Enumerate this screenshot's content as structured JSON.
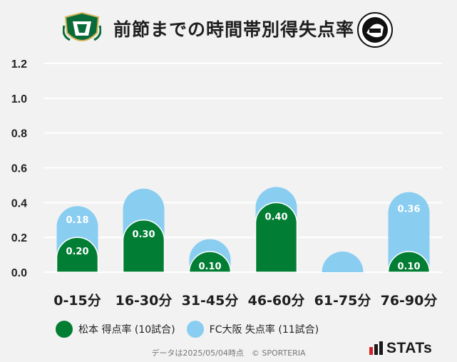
{
  "header": {
    "title": "前節までの時間帯別得失点率",
    "left_emblem": "matsumoto-emblem-icon",
    "right_emblem": "fc-osaka-emblem-icon"
  },
  "chart_data": {
    "type": "bar",
    "title": "前節までの時間帯別得失点率",
    "categories": [
      "0-15分",
      "16-30分",
      "31-45分",
      "46-60分",
      "61-75分",
      "76-90分"
    ],
    "series": [
      {
        "name": "松本 得点率 (10試合)",
        "color": "#027d34",
        "values": [
          0.2,
          0.3,
          0.1,
          0.4,
          0.0,
          0.1
        ]
      },
      {
        "name": "FC大阪 失点率 (11試合)",
        "color": "#89cdf1",
        "values": [
          0.18,
          0.18,
          0.09,
          0.09,
          0.09,
          0.36
        ]
      }
    ],
    "bar_labels": [
      [
        "0.20",
        "0.30",
        "0.10",
        "0.40",
        "",
        "0.10"
      ],
      [
        "0.18",
        "",
        "",
        "",
        "",
        "0.36"
      ]
    ],
    "ylim": [
      0,
      1.2
    ],
    "yticks": [
      0.0,
      0.2,
      0.4,
      0.6,
      0.8,
      1.0,
      1.2
    ],
    "ytick_labels": [
      "0.0",
      "0.2",
      "0.4",
      "0.6",
      "0.8",
      "1.0",
      "1.2"
    ],
    "grid": true,
    "legend": "bottom"
  },
  "legend": {
    "items": [
      {
        "label": "松本 得点率 (10試合)",
        "color": "#027d34"
      },
      {
        "label": "FC大阪 失点率 (11試合)",
        "color": "#89cdf1"
      }
    ]
  },
  "footer": {
    "text": "データは2025/05/04時点　© SPORTERIA",
    "brand": "STATs"
  }
}
